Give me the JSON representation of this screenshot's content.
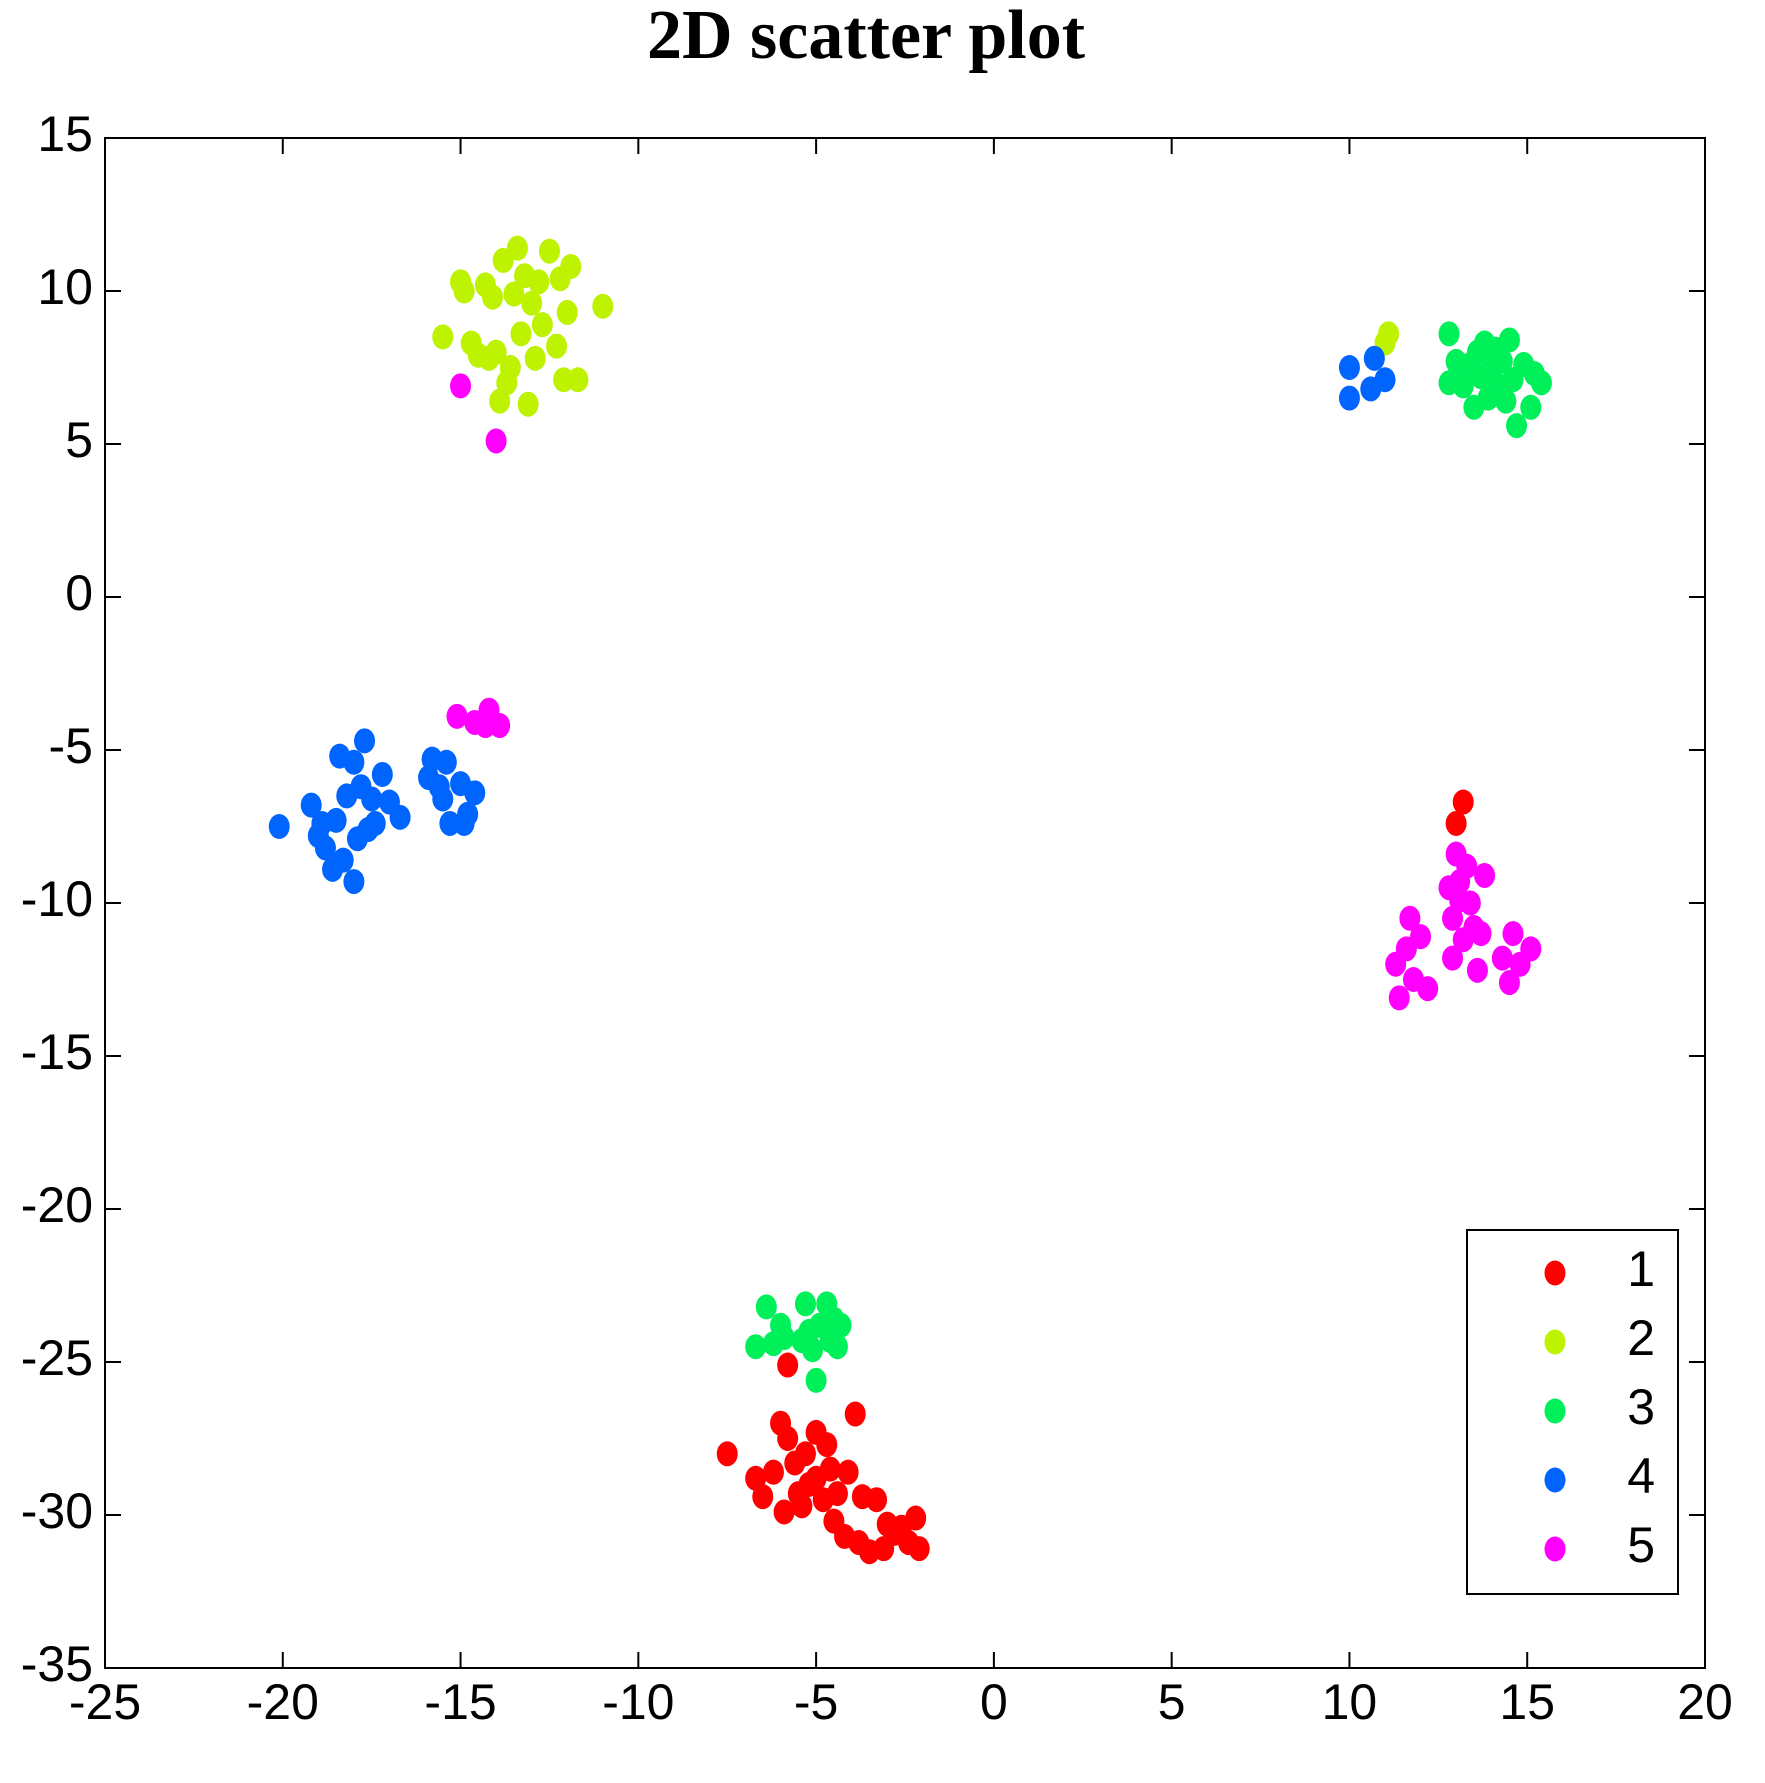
{
  "chart_data": {
    "type": "scatter",
    "title": "2D scatter plot",
    "xlim": [
      -25,
      20
    ],
    "xticks": [
      -25,
      -20,
      -15,
      -10,
      -5,
      0,
      5,
      10,
      15,
      20
    ],
    "ylim": [
      -35,
      15
    ],
    "yticks": [
      -35,
      -30,
      -25,
      -20,
      -15,
      -10,
      -5,
      0,
      5,
      10,
      15
    ],
    "legend_position": "lower right",
    "series": [
      {
        "name": "1",
        "color": "#ff0000",
        "x": [
          -7.5,
          -6.7,
          -6.5,
          -6.2,
          -6,
          -5.8,
          -5.6,
          -5.5,
          -5.3,
          -5.2,
          -5,
          -5,
          -4.8,
          -4.7,
          -4.6,
          -4.5,
          -4.4,
          -4.2,
          -4.1,
          -3.9,
          -3.8,
          -3.7,
          -3.5,
          -3.3,
          -3.1,
          -3,
          -2.8,
          -2.6,
          -2.4,
          -2.2,
          -2.1,
          -5.9,
          -5.4,
          -5.8,
          13.2,
          13
        ],
        "values": [
          -28,
          -28.8,
          -29.4,
          -28.6,
          -27,
          -27.5,
          -28.3,
          -29.3,
          -28,
          -29,
          -27.3,
          -28.8,
          -29.5,
          -27.7,
          -28.5,
          -30.2,
          -29.3,
          -30.7,
          -28.6,
          -26.7,
          -30.9,
          -29.4,
          -31.2,
          -29.5,
          -31.1,
          -30.3,
          -30.6,
          -30.4,
          -30.9,
          -30.1,
          -31.1,
          -29.9,
          -29.7,
          -25.1,
          -6.7,
          -7.4
        ]
      },
      {
        "name": "2",
        "color": "#bdf200",
        "x": [
          -15.5,
          -15,
          -14.9,
          -14.7,
          -14.5,
          -14.3,
          -14.1,
          -14,
          -13.9,
          -13.8,
          -13.6,
          -13.5,
          -13.4,
          -13.3,
          -13.2,
          -13.1,
          -13,
          -12.9,
          -12.8,
          -12.7,
          -12.5,
          -12.3,
          -12.2,
          -12.1,
          -12,
          -11.9,
          -11.7,
          -11,
          -13.7,
          -14.2,
          11,
          11.1
        ],
        "values": [
          8.5,
          10.3,
          10,
          8.3,
          7.9,
          10.2,
          9.8,
          8,
          6.4,
          11,
          7.5,
          9.9,
          11.4,
          8.6,
          10.5,
          6.3,
          9.6,
          7.8,
          10.3,
          8.9,
          11.3,
          8.2,
          10.4,
          7.1,
          9.3,
          10.8,
          7.1,
          9.5,
          7,
          7.8,
          8.3,
          8.6
        ]
      },
      {
        "name": "3",
        "color": "#00f05a",
        "x": [
          12.8,
          12.8,
          13,
          13.2,
          13.4,
          13.5,
          13.6,
          13.7,
          13.8,
          13.9,
          14,
          14.1,
          14.2,
          14.3,
          14.5,
          14.6,
          14.7,
          14.9,
          15.1,
          15.2,
          15.4,
          13.3,
          14.4,
          -6.4,
          -6.7,
          -6.2,
          -6,
          -5.9,
          -5.3,
          -5.2,
          -5.1,
          -5,
          -4.9,
          -4.7,
          -4.6,
          -4.5,
          -4.4,
          -4.3,
          -5.4
        ],
        "values": [
          8.6,
          7,
          7.7,
          6.9,
          7.6,
          6.2,
          8,
          7.2,
          8.3,
          6.5,
          7.5,
          8.1,
          6.9,
          7.7,
          8.4,
          7.1,
          5.6,
          7.6,
          6.2,
          7.3,
          7,
          7.3,
          6.4,
          -23.2,
          -24.5,
          -24.4,
          -23.8,
          -24.2,
          -23.1,
          -24,
          -24.6,
          -25.6,
          -23.8,
          -23.1,
          -24.3,
          -23.6,
          -24.5,
          -23.8,
          -24.3
        ]
      },
      {
        "name": "4",
        "color": "#0064ff",
        "x": [
          -20.1,
          -19.2,
          -19,
          -18.9,
          -18.8,
          -18.6,
          -18.5,
          -18.4,
          -18.3,
          -18.2,
          -18,
          -18,
          -17.9,
          -17.8,
          -17.7,
          -17.6,
          -17.5,
          -17.4,
          -17.2,
          -17,
          -16.7,
          -15.9,
          -15.8,
          -15.6,
          -15.5,
          -15.4,
          -15.3,
          -15,
          -14.9,
          -14.8,
          -14.6,
          10,
          10,
          10.6,
          10.7,
          11
        ],
        "values": [
          -7.5,
          -6.8,
          -7.8,
          -7.4,
          -8.2,
          -8.9,
          -7.3,
          -5.2,
          -8.6,
          -6.5,
          -9.3,
          -5.4,
          -7.9,
          -6.2,
          -4.7,
          -7.6,
          -6.6,
          -7.4,
          -5.8,
          -6.7,
          -7.2,
          -5.9,
          -5.3,
          -6.2,
          -6.6,
          -5.4,
          -7.4,
          -6.1,
          -7.4,
          -7.1,
          -6.4,
          6.5,
          7.5,
          6.8,
          7.8,
          7.1
        ]
      },
      {
        "name": "5",
        "color": "#ff00ff",
        "x": [
          -15,
          -14,
          -15.1,
          -14.6,
          -14.3,
          -14.2,
          -13.9,
          11.3,
          11.4,
          11.6,
          11.7,
          11.8,
          12,
          12.2,
          12.8,
          12.9,
          12.9,
          13,
          13.1,
          13.2,
          13.3,
          13.4,
          13.5,
          13.6,
          13.7,
          13.8,
          14.3,
          14.5,
          14.6,
          14.8,
          15.1,
          13.1
        ],
        "values": [
          6.9,
          5.1,
          -3.9,
          -4.1,
          -4.2,
          -3.7,
          -4.2,
          -12,
          -13.1,
          -11.5,
          -10.5,
          -12.5,
          -11.1,
          -12.8,
          -9.5,
          -10.5,
          -11.8,
          -8.4,
          -9.9,
          -11.2,
          -8.8,
          -10,
          -10.8,
          -12.2,
          -11,
          -9.1,
          -11.8,
          -12.6,
          -11,
          -12,
          -11.5,
          -9.3
        ]
      }
    ]
  }
}
